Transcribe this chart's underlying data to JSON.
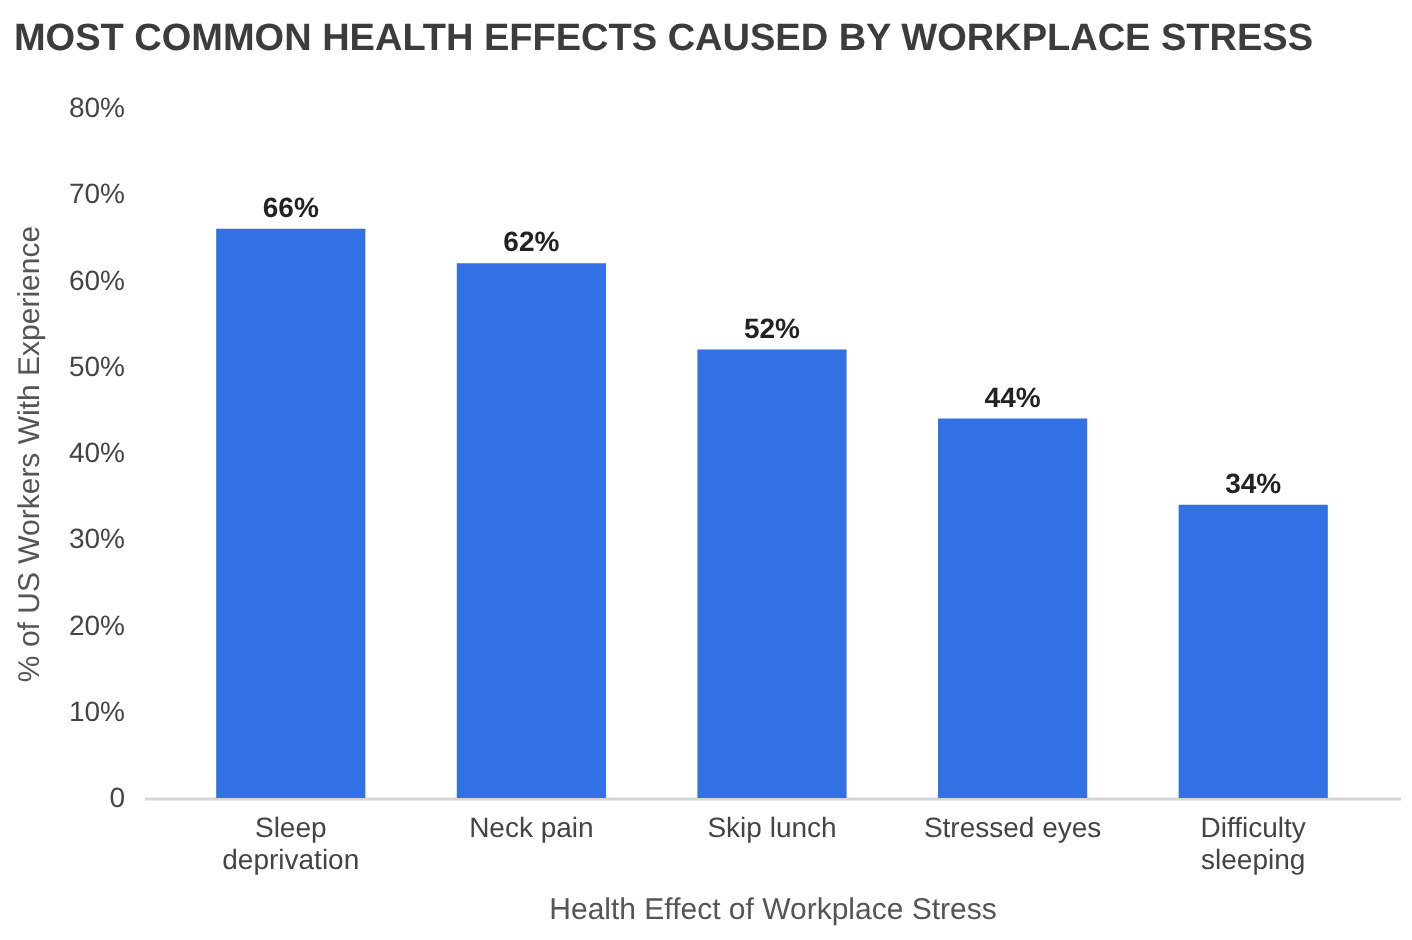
{
  "chart_data": {
    "type": "bar",
    "title": "MOST COMMON HEALTH EFFECTS CAUSED BY WORKPLACE STRESS",
    "xlabel": "Health Effect of Workplace Stress",
    "ylabel": "% of US Workers With Experience",
    "categories": [
      "Sleep deprivation",
      "Neck pain",
      "Skip lunch",
      "Stressed eyes",
      "Difficulty sleeping"
    ],
    "values": [
      66,
      62,
      52,
      44,
      34
    ],
    "color": "#3271e3",
    "value_labels": [
      "66%",
      "62%",
      "52%",
      "44%",
      "34%"
    ],
    "ylim": [
      0,
      80
    ],
    "yticks": [
      0,
      {
        "value": 10,
        "label": "10%"
      },
      {
        "value": 20,
        "label": "20%"
      },
      {
        "value": 30,
        "label": "30%"
      },
      {
        "value": 40,
        "label": "40%"
      },
      {
        "value": 50,
        "label": "50%"
      },
      {
        "value": 60,
        "label": "60%"
      },
      {
        "value": 70,
        "label": "70%"
      },
      {
        "value": 80,
        "label": "80%"
      }
    ],
    "grid": false
  }
}
